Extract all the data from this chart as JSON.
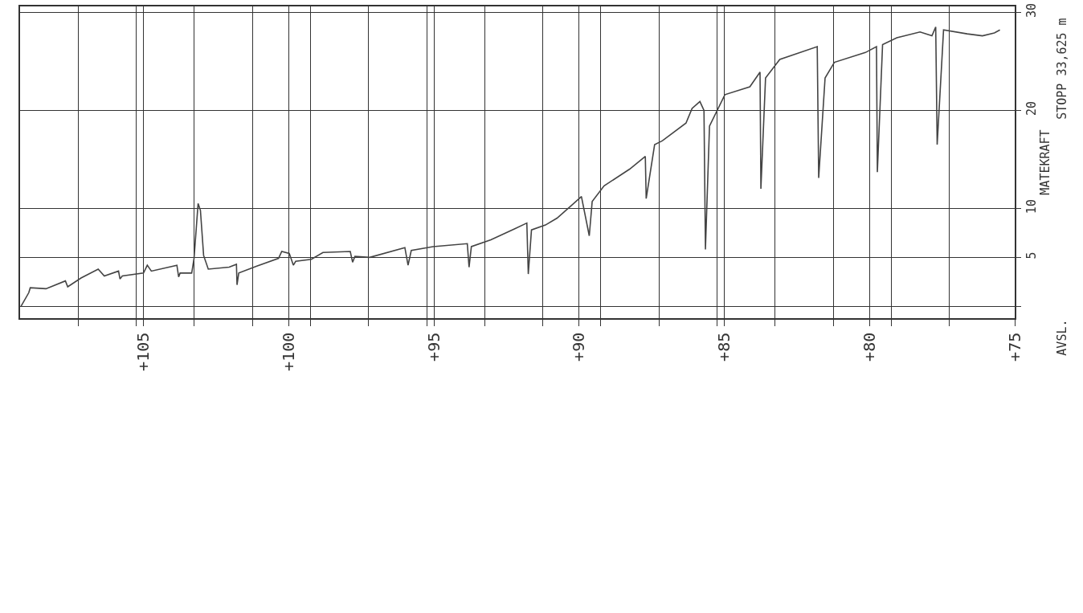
{
  "chart_data": {
    "type": "line",
    "ylabel": "MATEKRAFT",
    "annotations": [
      "STOPP 33,625 m",
      "AVSL."
    ],
    "x": [
      109.22,
      108.95,
      108.9,
      108.36,
      107.69,
      107.61,
      107.15,
      106.56,
      106.35,
      105.86,
      105.81,
      105.73,
      105.0,
      104.87,
      104.73,
      103.85,
      103.79,
      103.74,
      103.34,
      103.26,
      103.12,
      103.04,
      102.93,
      102.77,
      102.05,
      101.8,
      101.78,
      101.72,
      101.1,
      100.35,
      100.24,
      99.98,
      99.84,
      99.76,
      99.22,
      98.82,
      97.88,
      97.8,
      97.72,
      97.21,
      96.0,
      95.89,
      95.78,
      95.03,
      93.85,
      93.79,
      93.71,
      93.04,
      92.23,
      91.8,
      91.75,
      91.64,
      91.16,
      90.76,
      90.3,
      89.92,
      89.65,
      89.55,
      89.14,
      88.26,
      87.72,
      87.69,
      87.4,
      87.13,
      86.32,
      86.11,
      85.84,
      85.7,
      85.65,
      85.51,
      84.98,
      84.12,
      83.77,
      83.74,
      83.58,
      83.09,
      81.8,
      81.75,
      81.53,
      81.21,
      80.14,
      79.76,
      79.73,
      79.55,
      79.06,
      78.26,
      77.85,
      77.72,
      77.67,
      77.45,
      76.64,
      76.11,
      75.7,
      75.51
    ],
    "series": [
      {
        "color": "#444444",
        "values": [
          0,
          1.4,
          1.9,
          1.8,
          2.6,
          2.0,
          2.9,
          3.8,
          3.1,
          3.6,
          2.8,
          3.1,
          3.4,
          4.2,
          3.6,
          4.2,
          3.0,
          3.4,
          3.4,
          4.9,
          10.5,
          9.8,
          5.2,
          3.8,
          4.0,
          4.3,
          2.2,
          3.4,
          4.1,
          4.9,
          5.6,
          5.4,
          4.2,
          4.6,
          4.8,
          5.5,
          5.6,
          4.5,
          5.1,
          5.0,
          6.0,
          4.2,
          5.7,
          6.1,
          6.4,
          4.0,
          6.1,
          6.8,
          7.9,
          8.5,
          3.3,
          7.8,
          8.3,
          9.0,
          10.2,
          11.2,
          7.2,
          10.7,
          12.3,
          14.0,
          15.3,
          11.0,
          16.5,
          16.9,
          18.7,
          20.2,
          20.9,
          20.0,
          5.8,
          18.4,
          21.6,
          22.4,
          23.9,
          12.0,
          23.3,
          25.2,
          26.5,
          13.1,
          23.3,
          24.9,
          25.9,
          26.5,
          13.7,
          26.7,
          27.4,
          28.0,
          27.6,
          28.5,
          16.5,
          28.2,
          27.8,
          27.6,
          27.9,
          28.2
        ]
      }
    ],
    "xlim": [
      109.25,
      75
    ],
    "xticks": [
      {
        "value": 107.25,
        "label": null
      },
      {
        "value": 105.25,
        "label": null
      },
      {
        "value": 103.25,
        "label": null
      },
      {
        "value": 101.25,
        "label": null
      },
      {
        "value": 99.25,
        "label": null
      },
      {
        "value": 97.25,
        "label": null
      },
      {
        "value": 95.25,
        "label": null
      },
      {
        "value": 93.25,
        "label": null
      },
      {
        "value": 91.25,
        "label": null
      },
      {
        "value": 89.25,
        "label": null
      },
      {
        "value": 87.25,
        "label": null
      },
      {
        "value": 85.25,
        "label": null
      },
      {
        "value": 83.25,
        "label": null
      },
      {
        "value": 81.25,
        "label": null
      },
      {
        "value": 79.25,
        "label": null
      },
      {
        "value": 77.25,
        "label": null
      },
      {
        "value": 105,
        "label": "+105"
      },
      {
        "value": 100,
        "label": "+100"
      },
      {
        "value": 95,
        "label": "+95"
      },
      {
        "value": 90,
        "label": "+90"
      },
      {
        "value": 85,
        "label": "+85"
      },
      {
        "value": 80,
        "label": "+80"
      },
      {
        "value": 75,
        "label": "+75"
      }
    ],
    "ylim": [
      -1.2,
      30.6
    ],
    "yticks": [
      {
        "value": 0,
        "label": null
      },
      5,
      10,
      20,
      30
    ],
    "grid": true,
    "marker": "none",
    "line_style": "solid"
  }
}
